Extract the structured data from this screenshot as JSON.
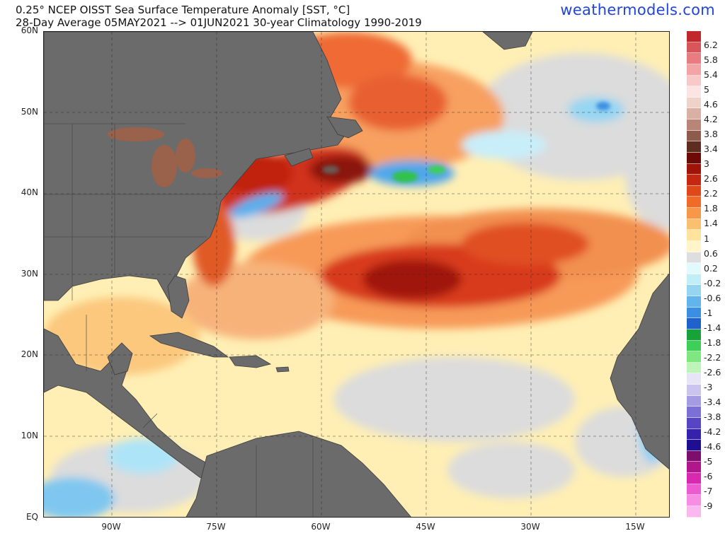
{
  "title_line1": "0.25° NCEP OISST Sea Surface Temperature Anomaly [SST, °C]",
  "title_line2": "28-Day Average 05MAY2021 --> 01JUN2021   30-year Climatology 1990-2019",
  "brand": "weathermodels.com",
  "map": {
    "land_color": "#6b6b6b",
    "lat_labels": [
      "60N",
      "50N",
      "40N",
      "30N",
      "20N",
      "10N",
      "EQ"
    ],
    "lon_labels": [
      "90W",
      "75W",
      "60W",
      "45W",
      "30W",
      "15W"
    ]
  },
  "colorbar": {
    "labels": [
      "6.2",
      "5.8",
      "5.4",
      "5",
      "4.6",
      "4.2",
      "3.8",
      "3.4",
      "3",
      "2.6",
      "2.2",
      "1.8",
      "1.4",
      "1",
      "0.6",
      "0.2",
      "-0.2",
      "-0.6",
      "-1",
      "-1.4",
      "-1.8",
      "-2.2",
      "-2.6",
      "-3",
      "-3.4",
      "-3.8",
      "-4.2",
      "-4.6",
      "-5",
      "-6",
      "-7",
      "-9"
    ],
    "colors": [
      "#c0282e",
      "#d8565a",
      "#e77d80",
      "#f2a4a6",
      "#f9c8c9",
      "#fde4e4",
      "#efd2c8",
      "#d9b0a3",
      "#b88577",
      "#8e5a4c",
      "#5e2d1f",
      "#6e0a06",
      "#a01408",
      "#c42810",
      "#e04818",
      "#f06a28",
      "#f79848",
      "#fbbf70",
      "#fde39c",
      "#fff5c8",
      "#dedede",
      "#e3fafc",
      "#c2eef8",
      "#96d5f2",
      "#62b4ec",
      "#3a8fe2",
      "#1f62cc",
      "#17a23a",
      "#3ecf58",
      "#7fe780",
      "#bff4b8",
      "#e8e4f8",
      "#cbc4ef",
      "#a49be3",
      "#7a70d6",
      "#5646c4",
      "#3422ac",
      "#200e92",
      "#7e0e6c",
      "#b2168c",
      "#d929b0",
      "#ee5ad0",
      "#f88ee4",
      "#fbb8ee"
    ]
  }
}
